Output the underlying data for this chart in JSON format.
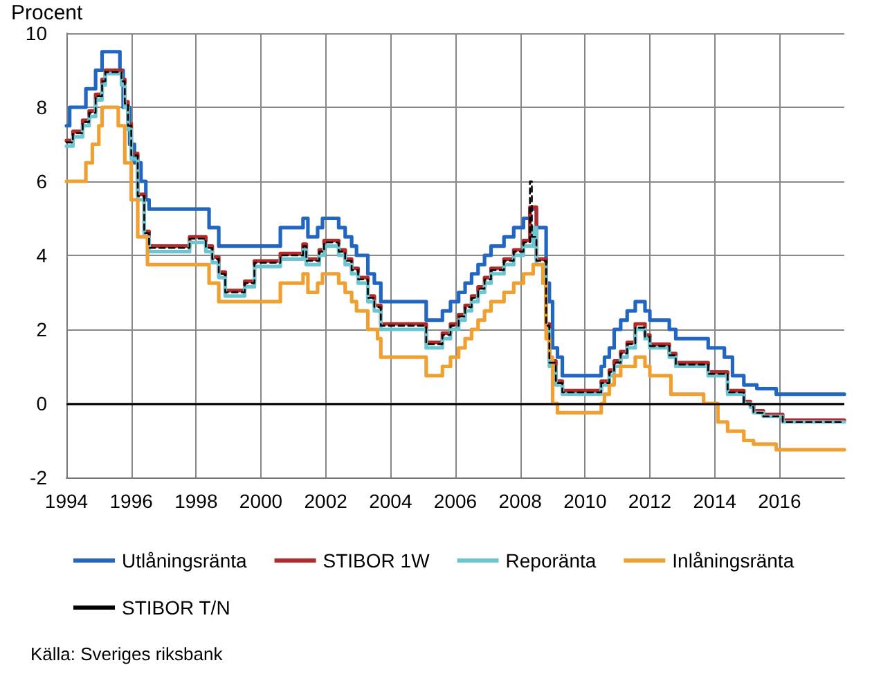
{
  "chart_data": {
    "type": "step",
    "ylabel": "Procent",
    "xlim": [
      1994,
      2018
    ],
    "xticks": [
      1994,
      1996,
      1998,
      2000,
      2002,
      2004,
      2006,
      2008,
      2010,
      2012,
      2014,
      2016
    ],
    "ylim": [
      -2,
      10
    ],
    "yticks": [
      -2,
      0,
      2,
      4,
      6,
      8,
      10
    ],
    "grid": true,
    "legend": "bottom",
    "marker": "none",
    "ref_lines": [
      {
        "axis": "y",
        "value": 0,
        "color": "#000000"
      }
    ],
    "annotations": [
      "Källa: Sveriges riksbank"
    ],
    "series": [
      {
        "name": "Utlåningsränta",
        "color": "#2166c0",
        "line_style": "solid",
        "x": [
          1994.0,
          1994.1,
          1994.6,
          1994.9,
          1995.1,
          1995.65,
          1995.75,
          1995.95,
          1996.1,
          1996.3,
          1996.45,
          1996.55,
          1998.4,
          1998.7,
          2000.6,
          2001.3,
          2001.45,
          2001.75,
          2001.9,
          2002.4,
          2002.6,
          2002.8,
          2002.95,
          2003.3,
          2003.5,
          2003.7,
          2005.1,
          2005.6,
          2005.85,
          2006.1,
          2006.3,
          2006.5,
          2006.7,
          2006.9,
          2007.1,
          2007.5,
          2007.8,
          2008.1,
          2008.3,
          2008.5,
          2008.8,
          2008.9,
          2009.0,
          2009.15,
          2009.3,
          2010.5,
          2010.6,
          2010.75,
          2010.9,
          2011.1,
          2011.3,
          2011.55,
          2011.85,
          2012.0,
          2012.6,
          2012.8,
          2013.8,
          2014.3,
          2014.55,
          2014.9,
          2015.3,
          2015.9,
          2018.0
        ],
        "values": [
          7.5,
          8.0,
          8.5,
          9.0,
          9.5,
          9.0,
          8.0,
          7.0,
          6.5,
          6.0,
          5.5,
          5.25,
          4.75,
          4.25,
          4.75,
          5.0,
          4.5,
          4.75,
          5.0,
          4.75,
          4.5,
          4.25,
          4.0,
          3.5,
          3.25,
          2.75,
          2.25,
          2.5,
          2.75,
          3.0,
          3.25,
          3.5,
          3.75,
          4.0,
          4.25,
          4.5,
          4.75,
          5.0,
          5.25,
          4.75,
          3.25,
          2.75,
          1.5,
          1.25,
          0.75,
          1.0,
          1.25,
          1.5,
          2.0,
          2.25,
          2.5,
          2.75,
          2.5,
          2.25,
          2.0,
          1.75,
          1.5,
          1.25,
          0.75,
          0.5,
          0.4,
          0.25,
          0.25
        ]
      },
      {
        "name": "STIBOR 1W",
        "color": "#b22a2a",
        "line_style": "solid",
        "x": [
          1994.0,
          1994.2,
          1994.5,
          1994.7,
          1994.9,
          1995.1,
          1995.2,
          1995.7,
          1995.8,
          1995.9,
          1996.0,
          1996.2,
          1996.4,
          1996.55,
          1997.8,
          1998.3,
          1998.5,
          1998.7,
          1998.9,
          1999.5,
          1999.8,
          2000.6,
          2001.3,
          2001.4,
          2001.8,
          2001.95,
          2002.4,
          2002.6,
          2002.8,
          2003.0,
          2003.3,
          2003.5,
          2003.7,
          2005.1,
          2005.6,
          2005.85,
          2006.1,
          2006.3,
          2006.5,
          2006.7,
          2006.9,
          2007.1,
          2007.5,
          2007.8,
          2008.1,
          2008.3,
          2008.5,
          2008.8,
          2008.9,
          2009.1,
          2009.3,
          2010.5,
          2010.75,
          2010.9,
          2011.1,
          2011.3,
          2011.55,
          2011.85,
          2012.0,
          2012.6,
          2012.8,
          2013.8,
          2014.4,
          2014.9,
          2015.1,
          2015.2,
          2015.5,
          2016.1,
          2018.0
        ],
        "values": [
          7.1,
          7.35,
          7.65,
          7.9,
          8.35,
          8.75,
          9.0,
          8.75,
          8.15,
          7.55,
          6.75,
          5.65,
          4.65,
          4.25,
          4.5,
          4.25,
          3.95,
          3.55,
          3.05,
          3.3,
          3.85,
          4.05,
          4.3,
          3.9,
          4.15,
          4.4,
          4.15,
          3.9,
          3.65,
          3.4,
          2.9,
          2.65,
          2.15,
          1.65,
          1.9,
          2.15,
          2.4,
          2.65,
          2.9,
          3.15,
          3.4,
          3.65,
          3.9,
          4.15,
          4.4,
          5.3,
          3.9,
          2.15,
          1.15,
          0.6,
          0.35,
          0.6,
          0.9,
          1.15,
          1.4,
          1.65,
          2.15,
          1.85,
          1.6,
          1.35,
          1.1,
          0.85,
          0.35,
          0.05,
          -0.05,
          -0.2,
          -0.3,
          -0.45,
          -0.45
        ]
      },
      {
        "name": "Reporänta",
        "color": "#6cc6d2",
        "line_style": "solid",
        "x": [
          1994.0,
          1994.2,
          1994.5,
          1994.7,
          1994.9,
          1995.1,
          1995.2,
          1995.7,
          1995.8,
          1995.9,
          1996.0,
          1996.2,
          1996.4,
          1996.55,
          1997.8,
          1998.3,
          1998.5,
          1998.7,
          1998.9,
          1999.5,
          1999.8,
          2000.6,
          2001.3,
          2001.4,
          2001.8,
          2001.95,
          2002.4,
          2002.6,
          2002.8,
          2003.0,
          2003.3,
          2003.5,
          2003.7,
          2005.1,
          2005.6,
          2005.85,
          2006.1,
          2006.3,
          2006.5,
          2006.7,
          2006.9,
          2007.1,
          2007.5,
          2007.8,
          2008.1,
          2008.4,
          2008.5,
          2008.8,
          2008.9,
          2009.1,
          2009.3,
          2010.5,
          2010.75,
          2010.9,
          2011.1,
          2011.3,
          2011.55,
          2011.85,
          2012.0,
          2012.6,
          2012.8,
          2013.8,
          2014.4,
          2014.9,
          2015.1,
          2015.2,
          2015.5,
          2016.1,
          2018.0
        ],
        "values": [
          6.95,
          7.2,
          7.5,
          7.75,
          8.2,
          8.6,
          8.91,
          8.6,
          8.0,
          7.4,
          6.6,
          5.5,
          4.5,
          4.1,
          4.35,
          4.1,
          3.8,
          3.4,
          2.9,
          3.15,
          3.7,
          3.9,
          4.15,
          3.75,
          4.0,
          4.25,
          4.0,
          3.75,
          3.5,
          3.25,
          2.75,
          2.5,
          2.0,
          1.5,
          1.75,
          2.0,
          2.25,
          2.5,
          2.75,
          3.0,
          3.25,
          3.5,
          3.75,
          4.0,
          4.25,
          4.75,
          3.75,
          2.0,
          1.0,
          0.5,
          0.25,
          0.5,
          0.75,
          1.0,
          1.25,
          1.5,
          2.0,
          1.75,
          1.5,
          1.25,
          1.0,
          0.75,
          0.25,
          0.0,
          -0.1,
          -0.25,
          -0.35,
          -0.5,
          -0.5
        ]
      },
      {
        "name": "Inlåningsränta",
        "color": "#f0a030",
        "line_style": "solid",
        "x": [
          1994.0,
          1994.6,
          1994.8,
          1995.0,
          1995.1,
          1995.6,
          1995.8,
          1996.0,
          1996.2,
          1996.5,
          1998.4,
          1998.7,
          2000.6,
          2001.3,
          2001.45,
          2001.75,
          2001.9,
          2002.4,
          2002.6,
          2002.8,
          2002.95,
          2003.3,
          2003.6,
          2003.7,
          2005.1,
          2005.6,
          2005.85,
          2006.1,
          2006.3,
          2006.5,
          2006.7,
          2006.9,
          2007.1,
          2007.5,
          2007.8,
          2008.1,
          2008.4,
          2008.7,
          2008.8,
          2008.9,
          2009.0,
          2009.15,
          2010.5,
          2010.6,
          2010.75,
          2010.9,
          2011.1,
          2011.55,
          2011.85,
          2012.0,
          2012.65,
          2013.66,
          2014.1,
          2014.4,
          2014.9,
          2015.2,
          2015.9,
          2018.0
        ],
        "values": [
          6.0,
          6.5,
          7.0,
          7.5,
          8.0,
          7.5,
          6.5,
          5.5,
          4.5,
          3.75,
          3.25,
          2.75,
          3.25,
          3.5,
          3.0,
          3.25,
          3.5,
          3.25,
          3.0,
          2.75,
          2.5,
          2.0,
          1.75,
          1.25,
          0.75,
          1.0,
          1.25,
          1.5,
          1.75,
          2.0,
          2.25,
          2.5,
          2.75,
          3.0,
          3.25,
          3.5,
          3.75,
          3.25,
          1.75,
          1.25,
          0.0,
          -0.25,
          0.0,
          0.25,
          0.5,
          0.75,
          1.0,
          1.25,
          1.0,
          0.75,
          0.25,
          0.0,
          -0.5,
          -0.75,
          -1.0,
          -1.1,
          -1.25,
          -1.25
        ]
      },
      {
        "name": "STIBOR T/N",
        "color": "#000000",
        "line_style": "dashed",
        "x": [
          1994.0,
          1994.2,
          1994.5,
          1994.7,
          1994.9,
          1995.1,
          1995.2,
          1995.7,
          1995.8,
          1995.9,
          1996.0,
          1996.2,
          1996.4,
          1996.55,
          1997.8,
          1998.3,
          1998.5,
          1998.7,
          1998.9,
          1999.5,
          1999.8,
          2000.6,
          2001.3,
          2001.4,
          2001.8,
          2001.95,
          2002.4,
          2002.6,
          2002.8,
          2003.0,
          2003.3,
          2003.5,
          2003.7,
          2005.1,
          2005.6,
          2005.85,
          2006.1,
          2006.3,
          2006.5,
          2006.7,
          2006.9,
          2007.1,
          2007.5,
          2007.8,
          2008.1,
          2008.3,
          2008.36,
          2008.5,
          2008.8,
          2008.9,
          2009.1,
          2009.3,
          2010.5,
          2010.75,
          2010.9,
          2011.1,
          2011.3,
          2011.55,
          2011.85,
          2012.0,
          2012.6,
          2012.8,
          2013.8,
          2014.4,
          2014.9,
          2015.1,
          2015.2,
          2015.5,
          2016.1,
          2018.0
        ],
        "values": [
          7.05,
          7.3,
          7.6,
          7.85,
          8.3,
          8.7,
          8.95,
          8.7,
          8.1,
          7.5,
          6.7,
          5.6,
          4.6,
          4.2,
          4.45,
          4.2,
          3.9,
          3.5,
          3.0,
          3.25,
          3.8,
          4.0,
          4.25,
          3.85,
          4.1,
          4.35,
          4.1,
          3.85,
          3.6,
          3.35,
          2.85,
          2.6,
          2.1,
          1.6,
          1.85,
          2.1,
          2.35,
          2.6,
          2.85,
          3.1,
          3.35,
          3.6,
          3.85,
          4.1,
          4.35,
          6.0,
          4.5,
          3.85,
          2.1,
          1.1,
          0.55,
          0.3,
          0.55,
          0.85,
          1.1,
          1.35,
          1.6,
          2.05,
          1.8,
          1.55,
          1.3,
          1.05,
          0.8,
          0.3,
          0.0,
          -0.1,
          -0.25,
          -0.35,
          -0.5,
          -0.5
        ]
      }
    ]
  }
}
